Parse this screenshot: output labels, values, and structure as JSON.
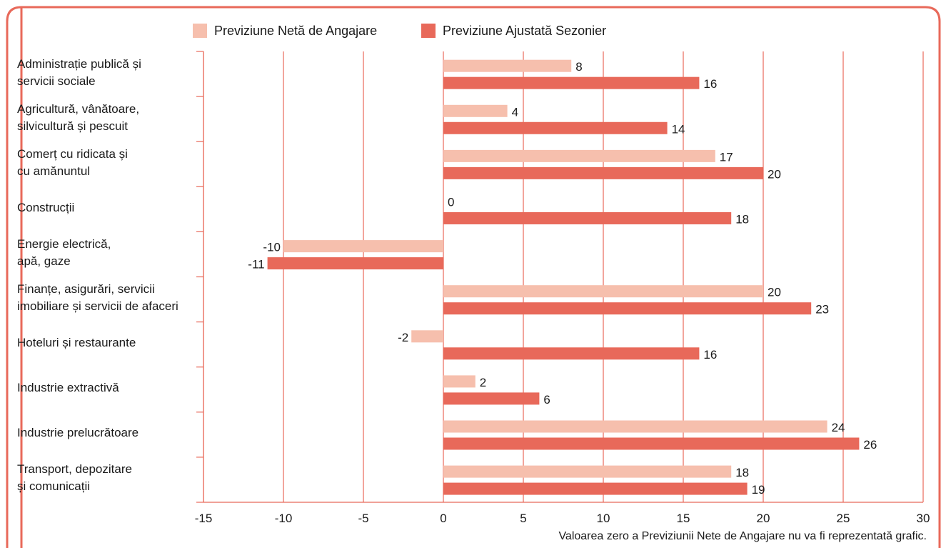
{
  "chart_data": {
    "type": "bar",
    "orientation": "horizontal",
    "categories": [
      [
        "Administrație publică și",
        "servicii sociale"
      ],
      [
        "Agricultură, vânătoare,",
        "silvicultură și pescuit"
      ],
      [
        "Comerț cu ridicata și",
        "cu amănuntul"
      ],
      [
        "Construcții"
      ],
      [
        "Energie electrică,",
        "apă, gaze"
      ],
      [
        "Finanțe, asigurări, servicii",
        "imobiliare și servicii de afaceri"
      ],
      [
        "Hoteluri și restaurante"
      ],
      [
        "Industrie extractivă"
      ],
      [
        "Industrie prelucrătoare"
      ],
      [
        "Transport, depozitare",
        "și comunicații"
      ]
    ],
    "series": [
      {
        "name": "Previziune Netă de Angajare",
        "color": "#f6bfad",
        "values": [
          8,
          4,
          17,
          0,
          -10,
          20,
          -2,
          2,
          24,
          18
        ]
      },
      {
        "name": "Previziune Ajustată Sezonier",
        "color": "#e8695a",
        "values": [
          16,
          14,
          20,
          18,
          -11,
          23,
          16,
          6,
          26,
          19
        ]
      }
    ],
    "xlim": [
      -15,
      30
    ],
    "xticks": [
      -15,
      -10,
      -5,
      0,
      5,
      10,
      15,
      20,
      25,
      30
    ],
    "grid": true,
    "legend_position": "top",
    "footnote": "Valoarea zero a Previziunii Nete de Angajare nu va fi reprezentată grafic.",
    "accent_color": "#e8695a"
  }
}
